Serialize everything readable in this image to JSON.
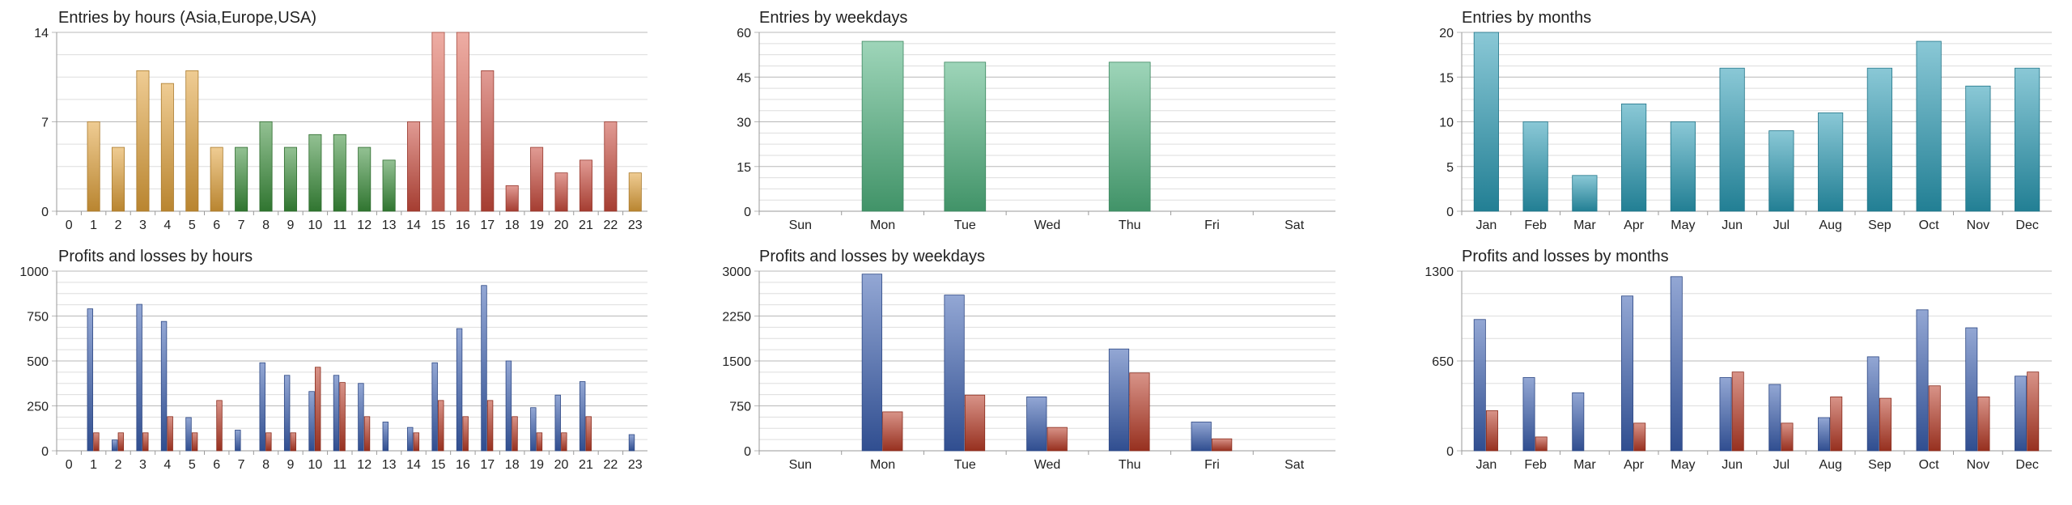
{
  "chart_data": [
    {
      "id": "entries-hours",
      "type": "bar",
      "title": "Entries by hours (Asia,Europe,USA)",
      "categories": [
        "0",
        "1",
        "2",
        "3",
        "4",
        "5",
        "6",
        "7",
        "8",
        "9",
        "10",
        "11",
        "12",
        "13",
        "14",
        "15",
        "16",
        "17",
        "18",
        "19",
        "20",
        "21",
        "22",
        "23"
      ],
      "yticks": [
        0,
        7,
        14
      ],
      "ylim": [
        0,
        14
      ],
      "series": [
        {
          "values": [
            0,
            7,
            5,
            11,
            10,
            11,
            5,
            5,
            7,
            5,
            6,
            6,
            5,
            4,
            7,
            14,
            14,
            11,
            2,
            5,
            3,
            4,
            7,
            3
          ]
        }
      ],
      "colors": [
        "#e2a23b",
        "#e2a23b",
        "#e2a23b",
        "#e2a23b",
        "#e2a23b",
        "#e2a23b",
        "#e2a23b",
        "#3a8f3a",
        "#3a8f3a",
        "#3a8f3a",
        "#3a8f3a",
        "#3a8f3a",
        "#3a8f3a",
        "#3a8f3a",
        "#c94a3c",
        "#e06a5a",
        "#e06a5a",
        "#c94a3c",
        "#c94a3c",
        "#c94a3c",
        "#c94a3c",
        "#c94a3c",
        "#c94a3c",
        "#e2a23b"
      ],
      "grid": true
    },
    {
      "id": "entries-weekdays",
      "type": "bar",
      "title": "Entries by weekdays",
      "categories": [
        "Sun",
        "Mon",
        "Tue",
        "Wed",
        "Thu",
        "Fri",
        "Sat"
      ],
      "yticks": [
        0,
        15,
        30,
        45,
        60
      ],
      "ylim": [
        0,
        60
      ],
      "series": [
        {
          "values": [
            0,
            57,
            50,
            0,
            50,
            0,
            0
          ]
        }
      ],
      "color": "#4fb37f",
      "grid": true
    },
    {
      "id": "entries-months",
      "type": "bar",
      "title": "Entries by months",
      "categories": [
        "Jan",
        "Feb",
        "Mar",
        "Apr",
        "May",
        "Jun",
        "Jul",
        "Aug",
        "Sep",
        "Oct",
        "Nov",
        "Dec"
      ],
      "yticks": [
        0,
        5,
        10,
        15,
        20
      ],
      "ylim": [
        0,
        20
      ],
      "series": [
        {
          "values": [
            20,
            10,
            4,
            12,
            10,
            16,
            9,
            11,
            16,
            19,
            14,
            16
          ]
        }
      ],
      "color": "#2a9bb5",
      "grid": true
    },
    {
      "id": "pl-hours",
      "type": "bar",
      "title": "Profits and losses by hours",
      "categories": [
        "0",
        "1",
        "2",
        "3",
        "4",
        "5",
        "6",
        "7",
        "8",
        "9",
        "10",
        "11",
        "12",
        "13",
        "14",
        "15",
        "16",
        "17",
        "18",
        "19",
        "20",
        "21",
        "22",
        "23"
      ],
      "yticks": [
        0,
        250,
        500,
        750,
        1000
      ],
      "ylim": [
        0,
        1000
      ],
      "series": [
        {
          "values": [
            0,
            790,
            60,
            815,
            720,
            185,
            0,
            115,
            490,
            420,
            330,
            420,
            375,
            160,
            130,
            490,
            680,
            920,
            500,
            240,
            310,
            385,
            0,
            90
          ],
          "color": "#3a5fb0"
        },
        {
          "values": [
            0,
            100,
            100,
            100,
            190,
            100,
            280,
            0,
            100,
            100,
            465,
            380,
            190,
            0,
            100,
            280,
            190,
            280,
            190,
            100,
            100,
            190,
            0,
            0
          ],
          "color": "#b83a26"
        }
      ],
      "grid": true
    },
    {
      "id": "pl-weekdays",
      "type": "bar",
      "title": "Profits and losses by weekdays",
      "categories": [
        "Sun",
        "Mon",
        "Tue",
        "Wed",
        "Thu",
        "Fri",
        "Sat"
      ],
      "yticks": [
        0,
        750,
        1500,
        2250,
        3000
      ],
      "ylim": [
        0,
        3000
      ],
      "series": [
        {
          "values": [
            0,
            2950,
            2600,
            900,
            1700,
            480,
            0
          ],
          "color": "#3a5fb0"
        },
        {
          "values": [
            0,
            650,
            930,
            390,
            1300,
            200,
            0
          ],
          "color": "#b83a26"
        }
      ],
      "grid": true
    },
    {
      "id": "pl-months",
      "type": "bar",
      "title": "Profits and losses by months",
      "categories": [
        "Jan",
        "Feb",
        "Mar",
        "Apr",
        "May",
        "Jun",
        "Jul",
        "Aug",
        "Sep",
        "Oct",
        "Nov",
        "Dec"
      ],
      "yticks": [
        0,
        650,
        1300
      ],
      "ylim": [
        0,
        1300
      ],
      "series": [
        {
          "values": [
            950,
            530,
            420,
            1120,
            1260,
            530,
            480,
            240,
            680,
            1020,
            890,
            540
          ],
          "color": "#3a5fb0"
        },
        {
          "values": [
            290,
            100,
            0,
            200,
            0,
            570,
            200,
            390,
            380,
            470,
            390,
            570
          ],
          "color": "#b83a26"
        }
      ],
      "grid": true
    }
  ]
}
